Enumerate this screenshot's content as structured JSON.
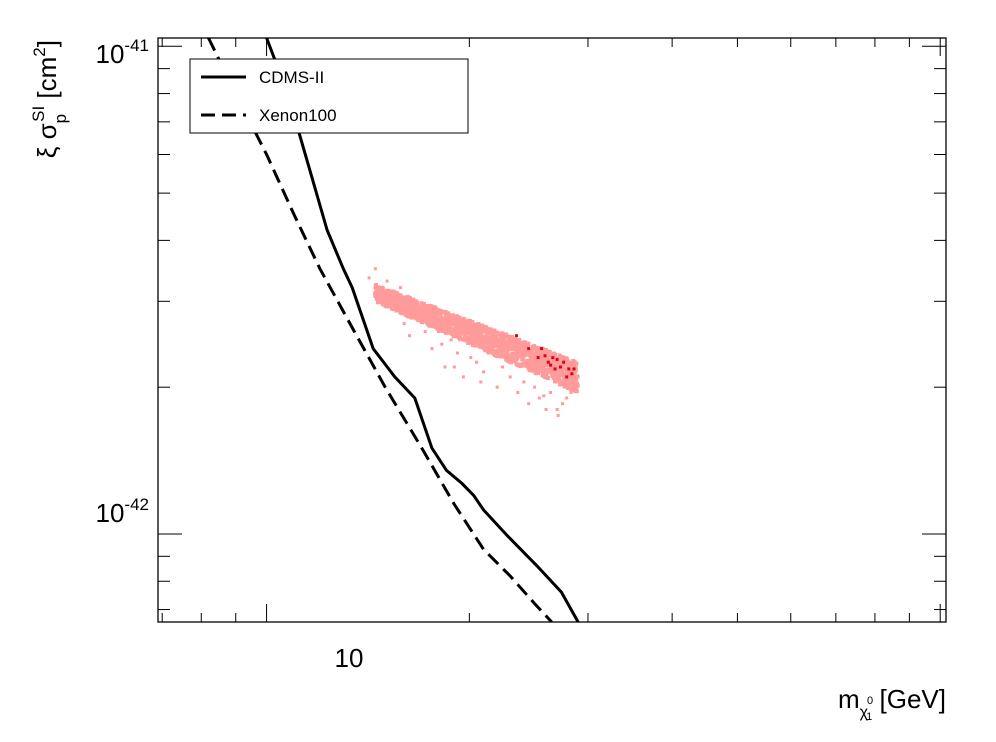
{
  "chart_data": {
    "type": "line",
    "xscale": "log",
    "yscale": "log",
    "xlim": [
      6.9,
      102
    ],
    "ylim": [
      6.6e-43,
      1.04e-41
    ],
    "grid": false,
    "legend_position": "top-left",
    "x_ticks": [
      {
        "value": 10,
        "label": "10"
      }
    ],
    "y_ticks": [
      {
        "value": 1e-42,
        "base": "10",
        "exp": "-42"
      },
      {
        "value": 1e-41,
        "base": "10",
        "exp": "-41"
      }
    ],
    "xlabel": {
      "prefix": "m",
      "sub1": "χ",
      "sup": "0",
      "sub2": "1",
      "suffix": " [GeV]"
    },
    "ylabel": {
      "prefix": "ξ σ",
      "sub": "p",
      "sup": "SI",
      "unit_prefix": " [cm",
      "unit_sup": "2",
      "unit_suffix": "]"
    },
    "series": [
      {
        "name": "CDMS-II",
        "style": "solid",
        "color": "#000000",
        "x": [
          10.0,
          10.75,
          11.5,
          12.3,
          13.0,
          13.4,
          14.4,
          15.5,
          16.6,
          17.6,
          18.5,
          19.5,
          20.3,
          21.0,
          22.8,
          25.2,
          27.4,
          29.0
        ],
        "y": [
          1.04e-41,
          8e-42,
          5.8e-42,
          4.2e-42,
          3.5e-42,
          3.2e-42,
          2.4e-42,
          2.1e-42,
          1.9e-42,
          1.5e-42,
          1.35e-42,
          1.27e-42,
          1.2e-42,
          1.12e-42,
          9.9e-43,
          8.6e-43,
          7.6e-43,
          6.6e-43
        ]
      },
      {
        "name": "Xenon100",
        "style": "dashed",
        "color": "#000000",
        "x": [
          8.2,
          9.0,
          10.0,
          11.0,
          12.0,
          13.5,
          15.0,
          17.0,
          19.0,
          21.0,
          23.0,
          25.0,
          26.5
        ],
        "y": [
          1.04e-41,
          8e-42,
          6e-42,
          4.5e-42,
          3.5e-42,
          2.6e-42,
          2e-42,
          1.5e-42,
          1.15e-42,
          9.3e-43,
          8.2e-43,
          7.2e-43,
          6.6e-43
        ]
      }
    ],
    "scatter_band": {
      "color": "#ff9b9b",
      "x_start": 14.5,
      "x_end": 29.0,
      "y_upper_start": 3.25e-42,
      "y_upper_end": 2.25e-42,
      "y_lower_start": 3e-42,
      "y_lower_end": 1.95e-42
    },
    "scatter_outliers": {
      "color": "#ff9b9b",
      "x": [
        14.2,
        14.6,
        14.5,
        15.1,
        15.6,
        15.8,
        16.0,
        16.3,
        16.8,
        17.2,
        17.6,
        18.0,
        18.4,
        18.8,
        19.2,
        19.6,
        20.1,
        20.5,
        21.0,
        21.5,
        22.0,
        22.4,
        23.0,
        23.6,
        24.1,
        24.5,
        25.0,
        25.4,
        26.0,
        26.4,
        27.1,
        27.5,
        27.9,
        28.3,
        15.3,
        16.5,
        17.4,
        18.2,
        19.0,
        20.8,
        22.8,
        25.8,
        27.0,
        28.6
      ],
      "y": [
        3.35e-42,
        3.15e-42,
        3.5e-42,
        3.3e-42,
        2.9e-42,
        3.2e-42,
        2.7e-42,
        2.55e-42,
        2.9e-42,
        2.6e-42,
        2.4e-42,
        2.6e-42,
        2.2e-42,
        2.5e-42,
        2.35e-42,
        2.1e-42,
        2.3e-42,
        2.25e-42,
        2.15e-42,
        2.35e-42,
        2e-42,
        2.2e-42,
        2.1e-42,
        1.95e-42,
        2.05e-42,
        1.85e-42,
        2e-42,
        1.9e-42,
        1.8e-42,
        1.95e-42,
        1.75e-42,
        1.85e-42,
        1.9e-42,
        1.95e-42,
        3.1e-42,
        3e-42,
        2.75e-42,
        2.45e-42,
        2.2e-42,
        2.05e-42,
        2.3e-42,
        1.92e-42,
        1.8e-42,
        2e-42
      ]
    },
    "scatter_highlight": {
      "color": "#e0001a",
      "x": [
        25.3,
        25.9,
        26.2,
        26.6,
        26.8,
        27.0,
        27.3,
        27.6,
        27.9,
        28.1,
        28.4,
        24.5,
        23.5,
        28.6,
        25.6,
        26.4
      ],
      "y": [
        2.3e-42,
        2.32e-42,
        2.25e-42,
        2.3e-42,
        2.18e-42,
        2.28e-42,
        2.2e-42,
        2.25e-42,
        2.1e-42,
        2.18e-42,
        2.13e-42,
        2.4e-42,
        2.55e-42,
        2.18e-42,
        2.4e-42,
        2.22e-42
      ]
    }
  }
}
